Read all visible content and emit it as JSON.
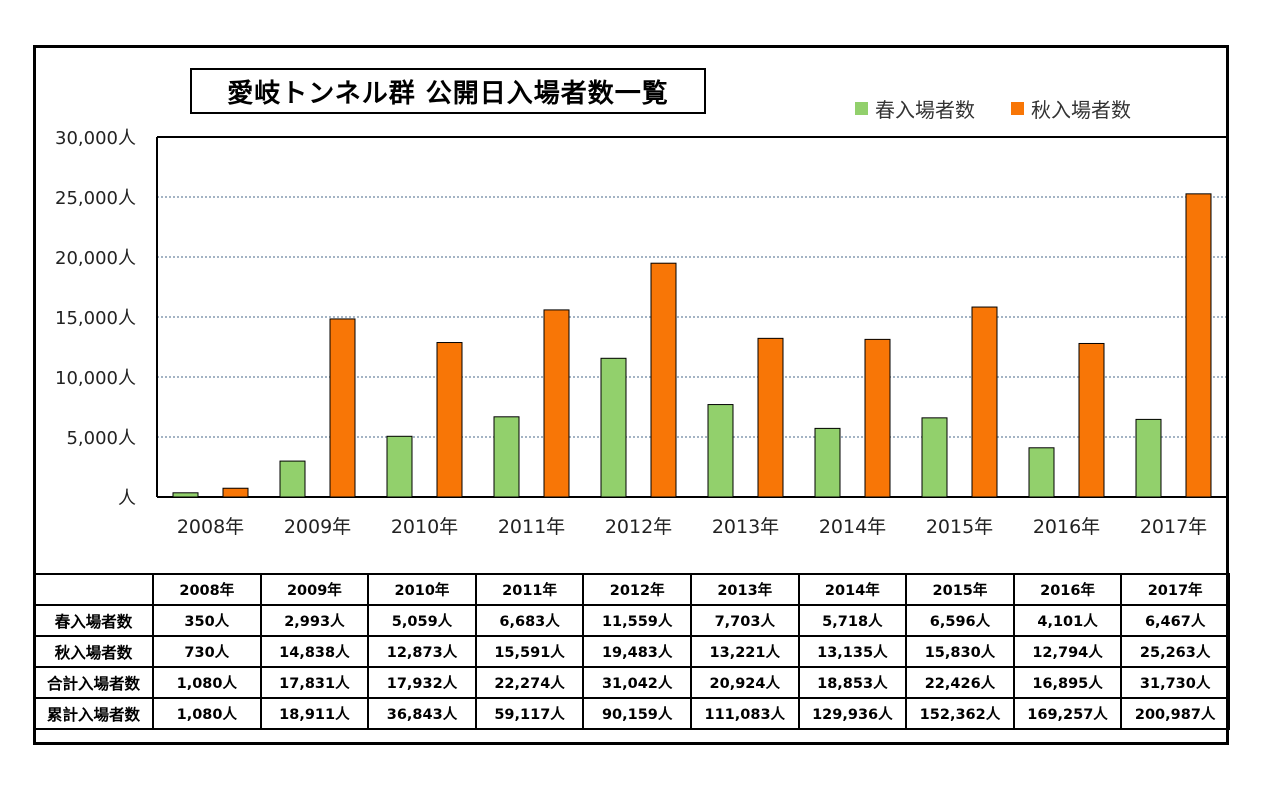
{
  "title": "愛岐トンネル群 公開日入場者数一覧",
  "colors": {
    "spring": "#92D06C",
    "autumn": "#F87606",
    "grid": "#4a6a8a"
  },
  "legend": {
    "spring": "春入場者数",
    "autumn": "秋入場者数"
  },
  "chart_data": {
    "type": "bar",
    "categories": [
      "2008年",
      "2009年",
      "2010年",
      "2011年",
      "2012年",
      "2013年",
      "2014年",
      "2015年",
      "2016年",
      "2017年"
    ],
    "series": [
      {
        "name": "春入場者数",
        "values": [
          350,
          2993,
          5059,
          6683,
          11559,
          7703,
          5718,
          6596,
          4101,
          6467
        ]
      },
      {
        "name": "秋入場者数",
        "values": [
          730,
          14838,
          12873,
          15591,
          19483,
          13221,
          13135,
          15830,
          12794,
          25263
        ]
      }
    ],
    "ylim": [
      0,
      30000
    ],
    "yticks": [
      0,
      5000,
      10000,
      15000,
      20000,
      25000,
      30000
    ],
    "ytick_labels": [
      "人",
      "5,000人",
      "10,000人",
      "15,000人",
      "20,000人",
      "25,000人",
      "30,000人"
    ],
    "grid": true,
    "legend_position": "top-right"
  },
  "table": {
    "headers": [
      "2008年",
      "2009年",
      "2010年",
      "2011年",
      "2012年",
      "2013年",
      "2014年",
      "2015年",
      "2016年",
      "2017年"
    ],
    "rows": [
      {
        "label": "春入場者数",
        "cells": [
          "350人",
          "2,993人",
          "5,059人",
          "6,683人",
          "11,559人",
          "7,703人",
          "5,718人",
          "6,596人",
          "4,101人",
          "6,467人"
        ]
      },
      {
        "label": "秋入場者数",
        "cells": [
          "730人",
          "14,838人",
          "12,873人",
          "15,591人",
          "19,483人",
          "13,221人",
          "13,135人",
          "15,830人",
          "12,794人",
          "25,263人"
        ]
      },
      {
        "label": "合計入場者数",
        "cells": [
          "1,080人",
          "17,831人",
          "17,932人",
          "22,274人",
          "31,042人",
          "20,924人",
          "18,853人",
          "22,426人",
          "16,895人",
          "31,730人"
        ]
      },
      {
        "label": "累計入場者数",
        "cells": [
          "1,080人",
          "18,911人",
          "36,843人",
          "59,117人",
          "90,159人",
          "111,083人",
          "129,936人",
          "152,362人",
          "169,257人",
          "200,987人"
        ]
      }
    ]
  }
}
